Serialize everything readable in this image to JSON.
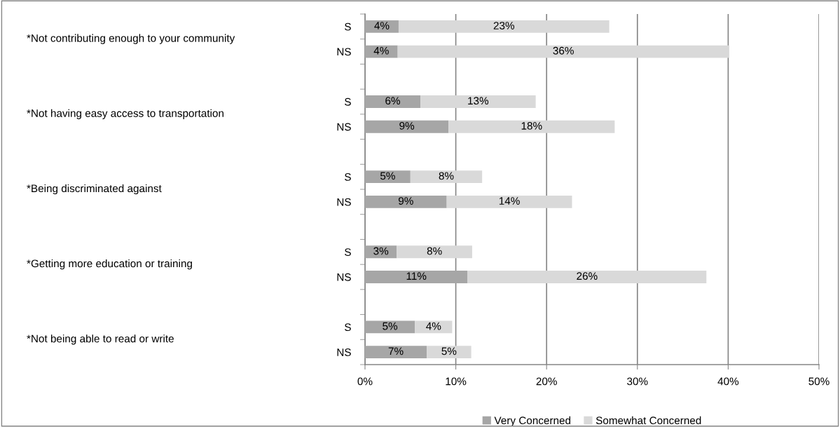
{
  "chart_data": {
    "type": "bar",
    "orientation": "horizontal",
    "stacked": true,
    "categories": [
      "S",
      "NS",
      "S",
      "NS",
      "S",
      "NS",
      "S",
      "NS",
      "S",
      "NS"
    ],
    "series": [
      {
        "name": "Very Concerned",
        "color": "#a6a6a6",
        "values": [
          3.7,
          3.6,
          6.1,
          9.2,
          5.0,
          9.0,
          3.5,
          11.3,
          5.5,
          6.8
        ],
        "value_labels": [
          "4%",
          "4%",
          "6%",
          "9%",
          "5%",
          "9%",
          "3%",
          "11%",
          "5%",
          "7%"
        ]
      },
      {
        "name": "Somewhat Concerned",
        "color": "#d9d9d9",
        "values": [
          23.2,
          36.5,
          12.7,
          18.3,
          7.9,
          13.8,
          8.3,
          26.3,
          4.1,
          4.9
        ],
        "value_labels": [
          "23%",
          "36%",
          "13%",
          "18%",
          "8%",
          "14%",
          "8%",
          "26%",
          "4%",
          "5%"
        ]
      }
    ],
    "annotations": [
      "*Not contributing enough to your community",
      "*Not having easy access to transportation",
      "*Being discriminated against",
      "*Getting more education or training",
      "*Not being able to read or write"
    ],
    "xlim": [
      0,
      50
    ],
    "xticks": [
      {
        "value": 0,
        "label": "0%"
      },
      {
        "value": 10,
        "label": "10%"
      },
      {
        "value": 20,
        "label": "20%"
      },
      {
        "value": 30,
        "label": "30%"
      },
      {
        "value": 40,
        "label": "40%"
      },
      {
        "value": 50,
        "label": "50%"
      }
    ],
    "grid": "x",
    "legend": "bottom"
  }
}
